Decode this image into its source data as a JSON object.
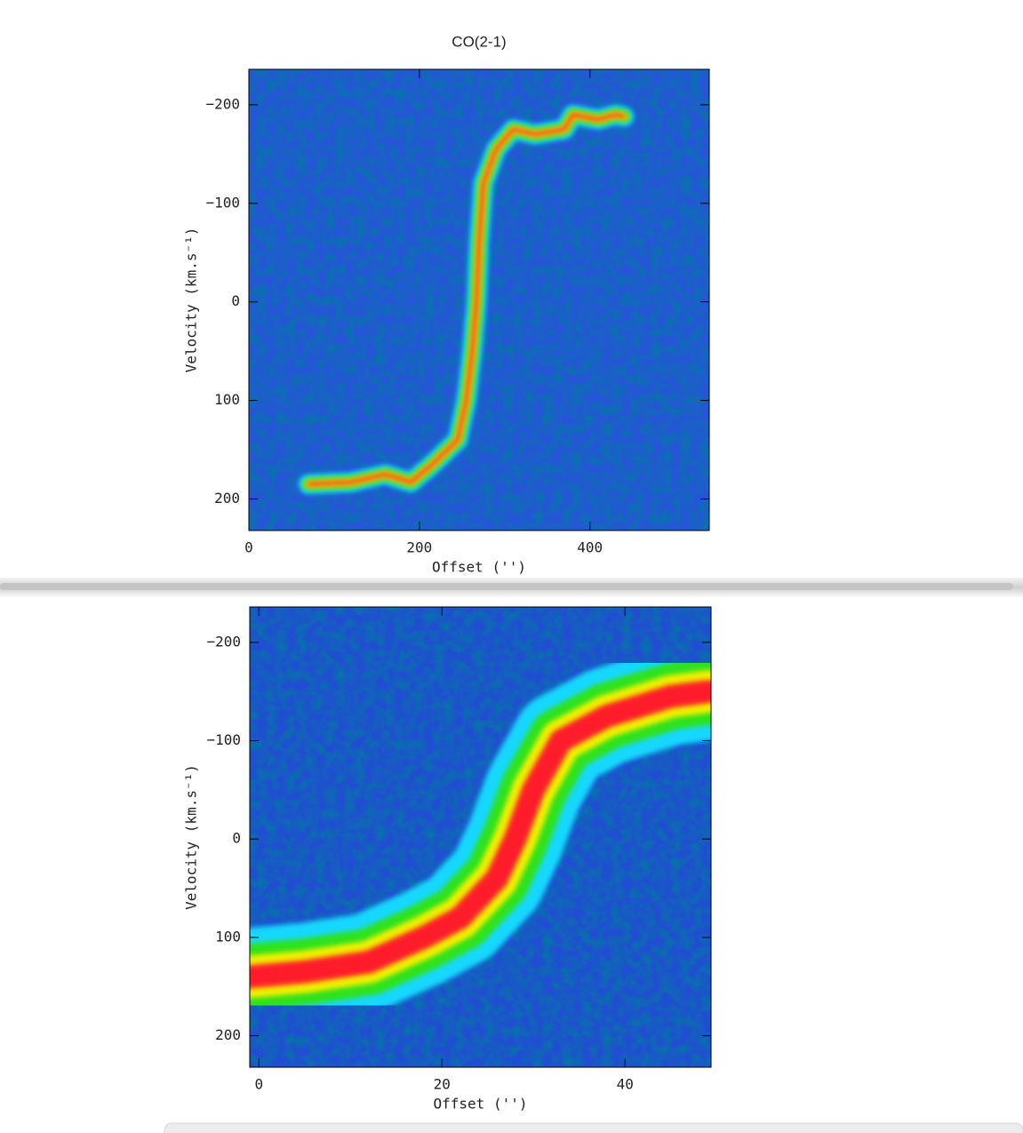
{
  "chart_data": [
    {
      "type": "pv-ridge",
      "title": "CO(2-1)",
      "xlabel": "Offset ('')",
      "ylabel": "Velocity (km.s⁻¹)",
      "xlim": [
        0,
        540
      ],
      "ylim": [
        -236,
        232
      ],
      "xticks": [
        0,
        200,
        400
      ],
      "yticks": [
        {
          "value": -200,
          "label": "−200"
        },
        {
          "value": -100,
          "label": "−100"
        },
        0,
        100,
        200
      ],
      "background_color": "#2456d6",
      "ridge_colors": [
        "#19d8ff",
        "#2ee21a",
        "#f0f000",
        "#ff1a2a"
      ],
      "x": [
        70,
        120,
        160,
        190,
        215,
        245,
        255,
        262,
        267,
        270,
        275,
        290,
        310,
        335,
        370,
        380,
        410,
        430,
        440
      ],
      "values": [
        185,
        183,
        175,
        183,
        165,
        140,
        100,
        50,
        0,
        -60,
        -120,
        -155,
        -175,
        -170,
        -175,
        -190,
        -185,
        -190,
        -188
      ]
    },
    {
      "type": "pv-ridge",
      "xlabel": "Offset ('')",
      "ylabel": "Velocity (km.s⁻¹)",
      "xlim": [
        -1,
        49.4
      ],
      "ylim": [
        -236,
        232
      ],
      "xticks": [
        0,
        20,
        40
      ],
      "yticks": [
        {
          "value": -200,
          "label": "−200"
        },
        {
          "value": -100,
          "label": "−100"
        },
        0,
        100,
        200
      ],
      "background_color": "#1f4fd0",
      "ridge_colors": [
        "#19d8ff",
        "#2ee21a",
        "#f0f000",
        "#ff1a2a"
      ],
      "x": [
        -1,
        5,
        12,
        18,
        22,
        26,
        28,
        30,
        33,
        38,
        45,
        49
      ],
      "values": [
        140,
        135,
        125,
        100,
        80,
        40,
        0,
        -50,
        -100,
        -125,
        -145,
        -150
      ]
    }
  ]
}
